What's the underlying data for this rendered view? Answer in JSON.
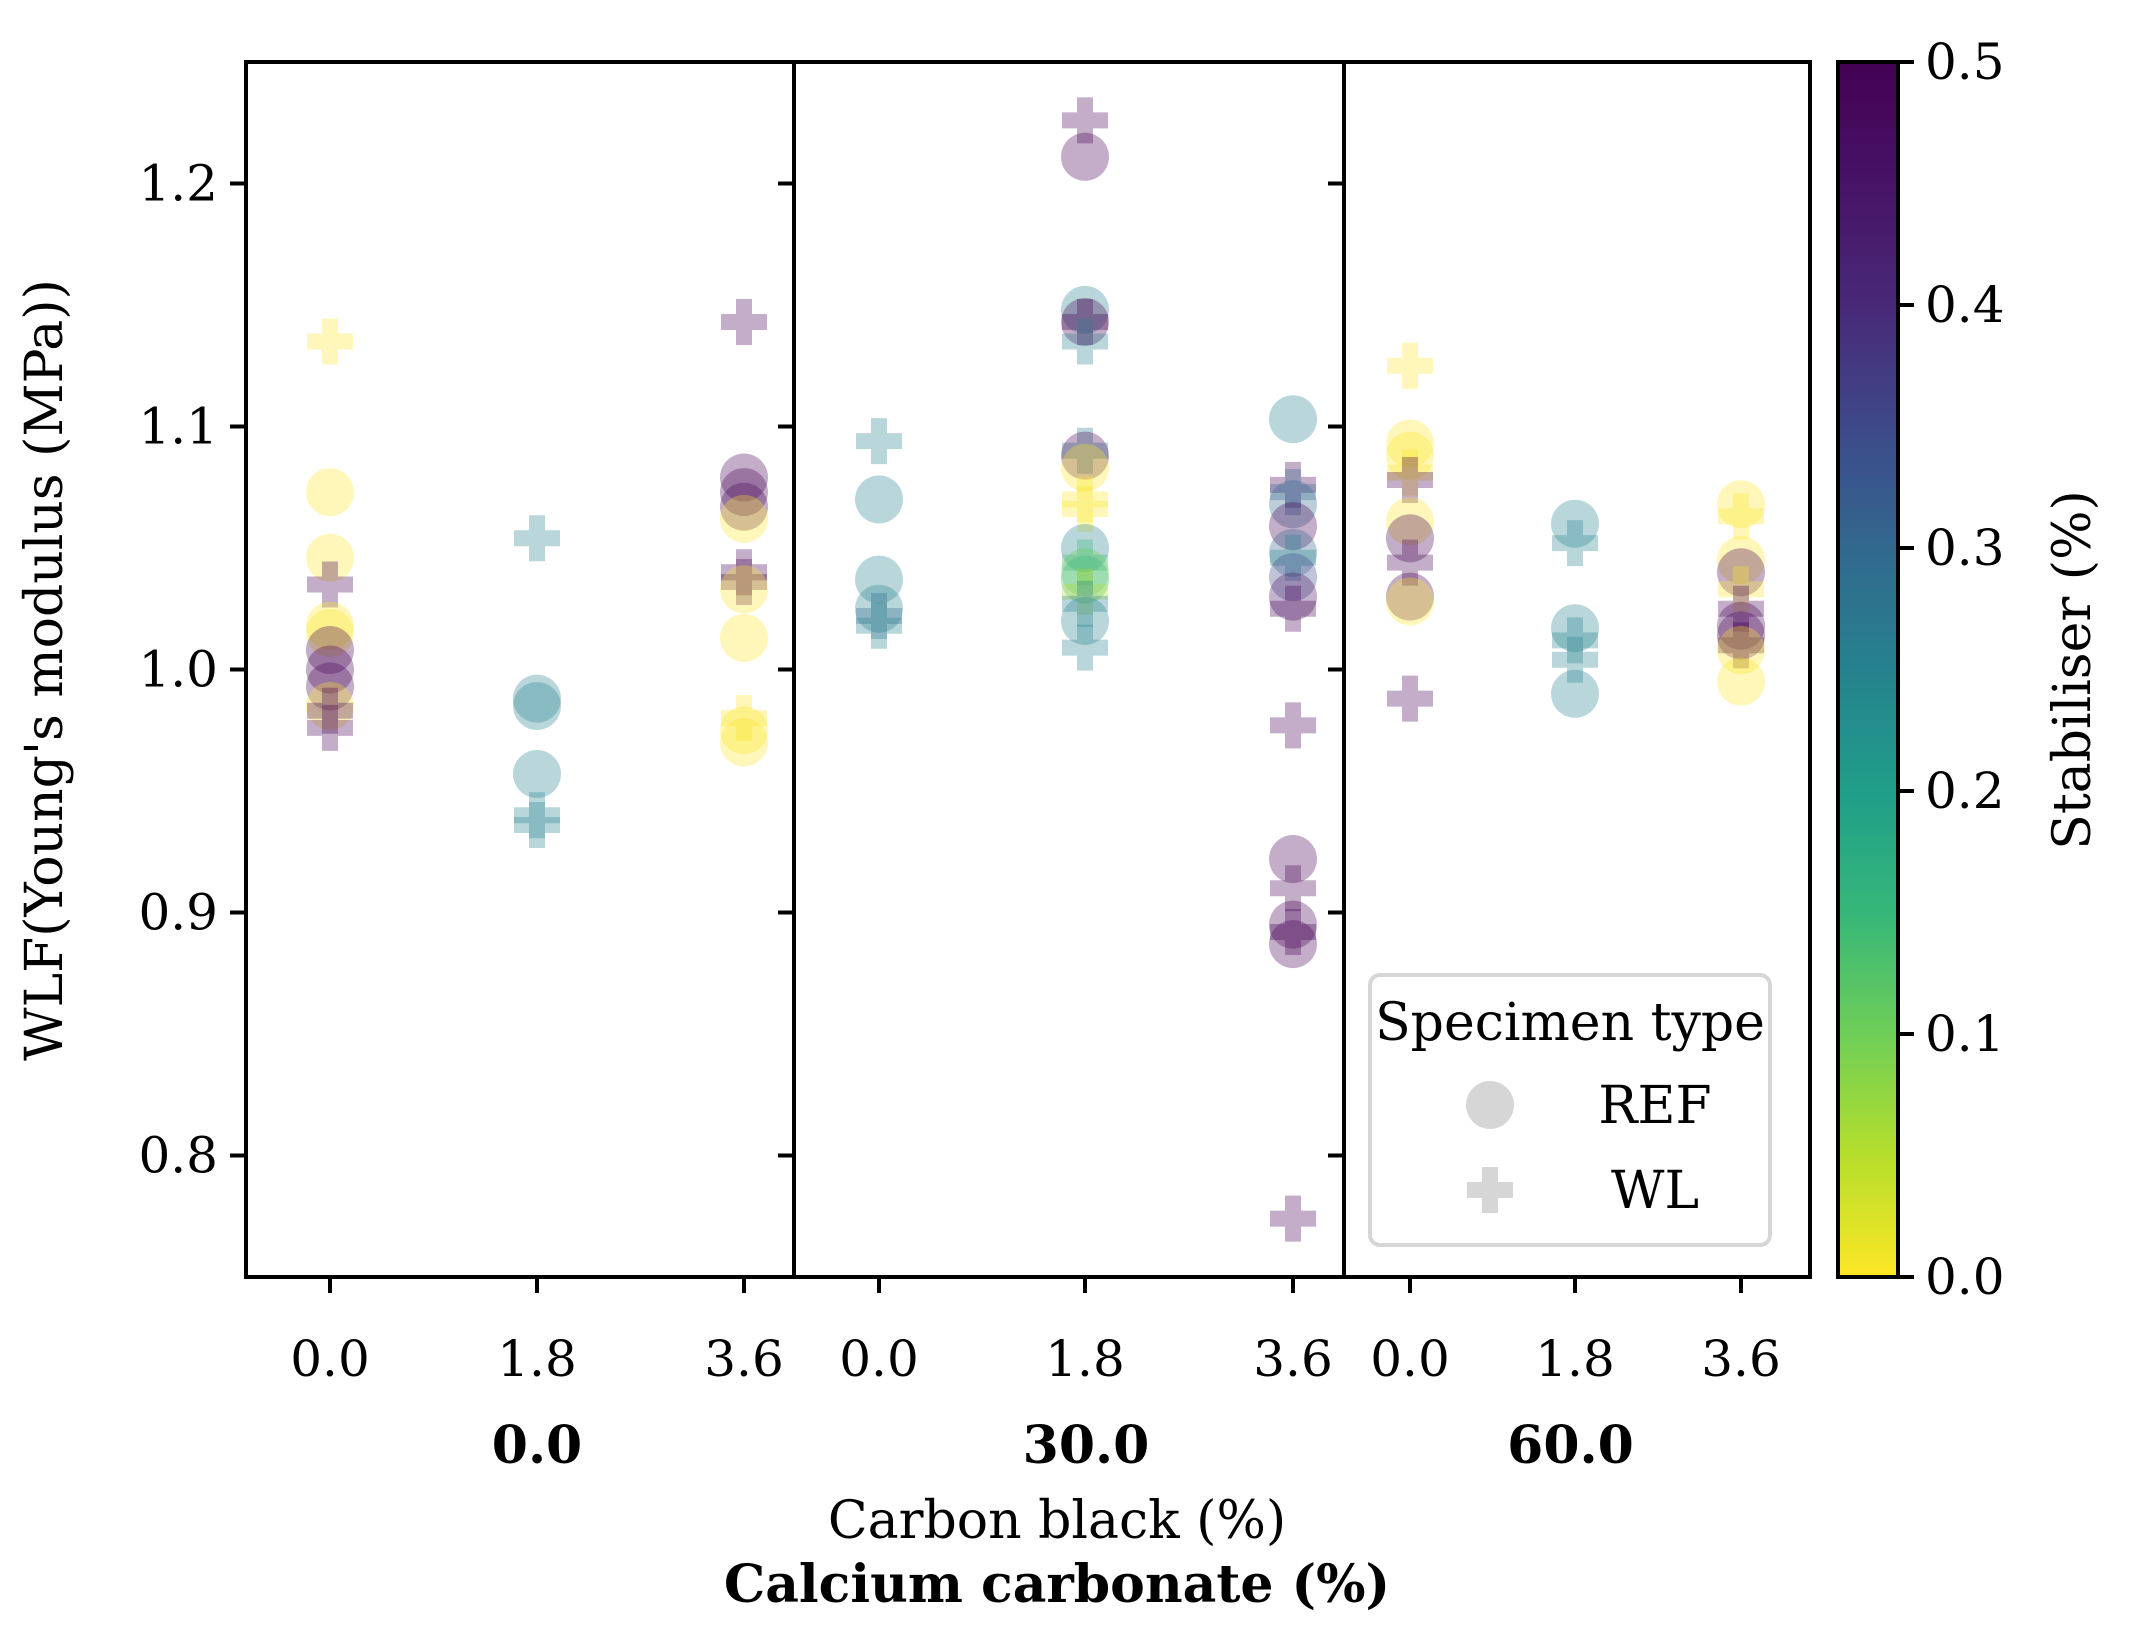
{
  "chart_data": {
    "type": "scatter",
    "ylabel": "WLF(Young's modulus (MPa))",
    "xlabel": "Carbon black (%)",
    "xlabel2": "Calcium carbonate (%)",
    "ylim": [
      0.75,
      1.25
    ],
    "yticks": [
      "0.8",
      "0.9",
      "1.0",
      "1.1",
      "1.2"
    ],
    "colorbar": {
      "label": "Stabiliser (%)",
      "range": [
        0.0,
        0.5
      ],
      "colormap": "viridis",
      "ticks": [
        "0.0",
        "0.1",
        "0.2",
        "0.3",
        "0.4",
        "0.5"
      ]
    },
    "legend": {
      "title": "Specimen type",
      "entries": [
        {
          "label": "REF",
          "marker": "circle"
        },
        {
          "label": "WL",
          "marker": "plus"
        }
      ]
    },
    "panels": [
      {
        "label": "0.0",
        "xticks": [
          "0.0",
          "1.8",
          "3.6"
        ],
        "points": [
          {
            "x": "0.0",
            "y": 1.135,
            "type": "WL",
            "stab": 0.0
          },
          {
            "x": "0.0",
            "y": 1.073,
            "type": "REF",
            "stab": 0.0
          },
          {
            "x": "0.0",
            "y": 1.046,
            "type": "REF",
            "stab": 0.0
          },
          {
            "x": "0.0",
            "y": 1.035,
            "type": "WL",
            "stab": 0.5
          },
          {
            "x": "0.0",
            "y": 1.018,
            "type": "REF",
            "stab": 0.0
          },
          {
            "x": "0.0",
            "y": 1.015,
            "type": "REF",
            "stab": 0.0
          },
          {
            "x": "0.0",
            "y": 1.008,
            "type": "REF",
            "stab": 0.5
          },
          {
            "x": "0.0",
            "y": 1.0,
            "type": "REF",
            "stab": 0.5
          },
          {
            "x": "0.0",
            "y": 0.993,
            "type": "REF",
            "stab": 0.5
          },
          {
            "x": "0.0",
            "y": 0.985,
            "type": "REF",
            "stab": 0.0
          },
          {
            "x": "0.0",
            "y": 0.983,
            "type": "WL",
            "stab": 0.5
          },
          {
            "x": "0.0",
            "y": 0.976,
            "type": "WL",
            "stab": 0.5
          },
          {
            "x": "1.8",
            "y": 1.054,
            "type": "WL",
            "stab": 0.25
          },
          {
            "x": "1.8",
            "y": 0.988,
            "type": "REF",
            "stab": 0.25
          },
          {
            "x": "1.8",
            "y": 0.985,
            "type": "REF",
            "stab": 0.25
          },
          {
            "x": "1.8",
            "y": 0.957,
            "type": "REF",
            "stab": 0.25
          },
          {
            "x": "1.8",
            "y": 0.94,
            "type": "WL",
            "stab": 0.25
          },
          {
            "x": "1.8",
            "y": 0.936,
            "type": "WL",
            "stab": 0.25
          },
          {
            "x": "3.6",
            "y": 1.143,
            "type": "WL",
            "stab": 0.5
          },
          {
            "x": "3.6",
            "y": 1.079,
            "type": "REF",
            "stab": 0.5
          },
          {
            "x": "3.6",
            "y": 1.073,
            "type": "REF",
            "stab": 0.5
          },
          {
            "x": "3.6",
            "y": 1.067,
            "type": "REF",
            "stab": 0.5
          },
          {
            "x": "3.6",
            "y": 1.062,
            "type": "REF",
            "stab": 0.0
          },
          {
            "x": "3.6",
            "y": 1.04,
            "type": "WL",
            "stab": 0.5
          },
          {
            "x": "3.6",
            "y": 1.036,
            "type": "WL",
            "stab": 0.5
          },
          {
            "x": "3.6",
            "y": 1.033,
            "type": "REF",
            "stab": 0.0
          },
          {
            "x": "3.6",
            "y": 1.013,
            "type": "REF",
            "stab": 0.0
          },
          {
            "x": "3.6",
            "y": 0.98,
            "type": "WL",
            "stab": 0.0
          },
          {
            "x": "3.6",
            "y": 0.975,
            "type": "REF",
            "stab": 0.0
          },
          {
            "x": "3.6",
            "y": 0.97,
            "type": "REF",
            "stab": 0.0
          }
        ]
      },
      {
        "label": "30.0",
        "xticks": [
          "0.0",
          "1.8",
          "3.6"
        ],
        "points": [
          {
            "x": "0.0",
            "y": 1.094,
            "type": "WL",
            "stab": 0.25
          },
          {
            "x": "0.0",
            "y": 1.07,
            "type": "REF",
            "stab": 0.25
          },
          {
            "x": "0.0",
            "y": 1.037,
            "type": "REF",
            "stab": 0.25
          },
          {
            "x": "0.0",
            "y": 1.025,
            "type": "REF",
            "stab": 0.25
          },
          {
            "x": "0.0",
            "y": 1.022,
            "type": "WL",
            "stab": 0.3
          },
          {
            "x": "0.0",
            "y": 1.018,
            "type": "WL",
            "stab": 0.25
          },
          {
            "x": "1.8",
            "y": 1.226,
            "type": "WL",
            "stab": 0.5
          },
          {
            "x": "1.8",
            "y": 1.211,
            "type": "REF",
            "stab": 0.5
          },
          {
            "x": "1.8",
            "y": 1.148,
            "type": "REF",
            "stab": 0.25
          },
          {
            "x": "1.8",
            "y": 1.143,
            "type": "REF",
            "stab": 0.5
          },
          {
            "x": "1.8",
            "y": 1.143,
            "type": "WL",
            "stab": 0.5
          },
          {
            "x": "1.8",
            "y": 1.135,
            "type": "WL",
            "stab": 0.25
          },
          {
            "x": "1.8",
            "y": 1.09,
            "type": "WL",
            "stab": 0.25
          },
          {
            "x": "1.8",
            "y": 1.088,
            "type": "REF",
            "stab": 0.5
          },
          {
            "x": "1.8",
            "y": 1.083,
            "type": "REF",
            "stab": 0.0
          },
          {
            "x": "1.8",
            "y": 1.07,
            "type": "WL",
            "stab": 0.0
          },
          {
            "x": "1.8",
            "y": 1.066,
            "type": "WL",
            "stab": 0.0
          },
          {
            "x": "1.8",
            "y": 1.05,
            "type": "REF",
            "stab": 0.25
          },
          {
            "x": "1.8",
            "y": 1.044,
            "type": "WL",
            "stab": 0.15
          },
          {
            "x": "1.8",
            "y": 1.04,
            "type": "REF",
            "stab": 0.1
          },
          {
            "x": "1.8",
            "y": 1.037,
            "type": "REF",
            "stab": 0.15
          },
          {
            "x": "1.8",
            "y": 1.032,
            "type": "WL",
            "stab": 0.05
          },
          {
            "x": "1.8",
            "y": 1.027,
            "type": "WL",
            "stab": 0.25
          },
          {
            "x": "1.8",
            "y": 1.02,
            "type": "REF",
            "stab": 0.25
          },
          {
            "x": "1.8",
            "y": 1.009,
            "type": "WL",
            "stab": 0.25
          },
          {
            "x": "3.6",
            "y": 1.103,
            "type": "REF",
            "stab": 0.25
          },
          {
            "x": "3.6",
            "y": 1.076,
            "type": "WL",
            "stab": 0.5
          },
          {
            "x": "3.6",
            "y": 1.073,
            "type": "WL",
            "stab": 0.3
          },
          {
            "x": "3.6",
            "y": 1.068,
            "type": "REF",
            "stab": 0.3
          },
          {
            "x": "3.6",
            "y": 1.059,
            "type": "REF",
            "stab": 0.5
          },
          {
            "x": "3.6",
            "y": 1.048,
            "type": "REF",
            "stab": 0.3
          },
          {
            "x": "3.6",
            "y": 1.046,
            "type": "WL",
            "stab": 0.25
          },
          {
            "x": "3.6",
            "y": 1.038,
            "type": "REF",
            "stab": 0.35
          },
          {
            "x": "3.6",
            "y": 1.03,
            "type": "REF",
            "stab": 0.45
          },
          {
            "x": "3.6",
            "y": 1.025,
            "type": "WL",
            "stab": 0.5
          },
          {
            "x": "3.6",
            "y": 0.977,
            "type": "WL",
            "stab": 0.5
          },
          {
            "x": "3.6",
            "y": 0.922,
            "type": "REF",
            "stab": 0.5
          },
          {
            "x": "3.6",
            "y": 0.91,
            "type": "WL",
            "stab": 0.5
          },
          {
            "x": "3.6",
            "y": 0.895,
            "type": "REF",
            "stab": 0.5
          },
          {
            "x": "3.6",
            "y": 0.892,
            "type": "WL",
            "stab": 0.5
          },
          {
            "x": "3.6",
            "y": 0.887,
            "type": "REF",
            "stab": 0.5
          },
          {
            "x": "3.6",
            "y": 0.774,
            "type": "WL",
            "stab": 0.5
          }
        ]
      },
      {
        "label": "60.0",
        "xticks": [
          "0.0",
          "1.8",
          "3.6"
        ],
        "points": [
          {
            "x": "0.0",
            "y": 1.125,
            "type": "WL",
            "stab": 0.0
          },
          {
            "x": "0.0",
            "y": 1.093,
            "type": "REF",
            "stab": 0.0
          },
          {
            "x": "0.0",
            "y": 1.088,
            "type": "REF",
            "stab": 0.0
          },
          {
            "x": "0.0",
            "y": 1.081,
            "type": "WL",
            "stab": 0.0
          },
          {
            "x": "0.0",
            "y": 1.078,
            "type": "WL",
            "stab": 0.5
          },
          {
            "x": "0.0",
            "y": 1.061,
            "type": "REF",
            "stab": 0.0
          },
          {
            "x": "0.0",
            "y": 1.054,
            "type": "REF",
            "stab": 0.5
          },
          {
            "x": "0.0",
            "y": 1.044,
            "type": "WL",
            "stab": 0.5
          },
          {
            "x": "0.0",
            "y": 1.03,
            "type": "REF",
            "stab": 0.5
          },
          {
            "x": "0.0",
            "y": 1.028,
            "type": "REF",
            "stab": 0.0
          },
          {
            "x": "0.0",
            "y": 0.988,
            "type": "WL",
            "stab": 0.5
          },
          {
            "x": "1.8",
            "y": 1.06,
            "type": "REF",
            "stab": 0.25
          },
          {
            "x": "1.8",
            "y": 1.052,
            "type": "WL",
            "stab": 0.25
          },
          {
            "x": "1.8",
            "y": 1.017,
            "type": "REF",
            "stab": 0.25
          },
          {
            "x": "1.8",
            "y": 1.012,
            "type": "WL",
            "stab": 0.25
          },
          {
            "x": "1.8",
            "y": 1.004,
            "type": "WL",
            "stab": 0.25
          },
          {
            "x": "1.8",
            "y": 0.99,
            "type": "REF",
            "stab": 0.25
          },
          {
            "x": "3.6",
            "y": 1.068,
            "type": "REF",
            "stab": 0.0
          },
          {
            "x": "3.6",
            "y": 1.063,
            "type": "WL",
            "stab": 0.0
          },
          {
            "x": "3.6",
            "y": 1.045,
            "type": "REF",
            "stab": 0.0
          },
          {
            "x": "3.6",
            "y": 1.04,
            "type": "REF",
            "stab": 0.5
          },
          {
            "x": "3.6",
            "y": 1.033,
            "type": "WL",
            "stab": 0.0
          },
          {
            "x": "3.6",
            "y": 1.025,
            "type": "WL",
            "stab": 0.5
          },
          {
            "x": "3.6",
            "y": 1.018,
            "type": "REF",
            "stab": 0.5
          },
          {
            "x": "3.6",
            "y": 1.014,
            "type": "REF",
            "stab": 0.5
          },
          {
            "x": "3.6",
            "y": 1.01,
            "type": "WL",
            "stab": 0.5
          },
          {
            "x": "3.6",
            "y": 1.008,
            "type": "REF",
            "stab": 0.0
          },
          {
            "x": "3.6",
            "y": 0.995,
            "type": "REF",
            "stab": 0.0
          }
        ]
      }
    ]
  }
}
